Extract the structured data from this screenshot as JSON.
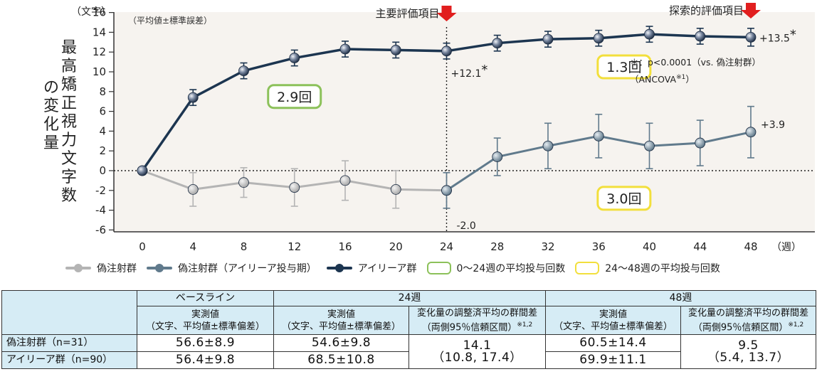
{
  "chart_data": {
    "type": "line",
    "ylabel": "最高矯正視力文字数の変化量",
    "y_unit": "（文字）",
    "x_unit": "（週）",
    "note_top_left": "（平均値±標準誤差）",
    "ylim": [
      -6,
      16
    ],
    "yticks": [
      -6,
      -4,
      -2,
      0,
      2,
      4,
      6,
      8,
      10,
      12,
      14,
      16
    ],
    "x": [
      0,
      4,
      8,
      12,
      16,
      20,
      24,
      28,
      32,
      36,
      40,
      44,
      48
    ],
    "series": [
      {
        "name": "偽注射群",
        "x": [
          0,
          4,
          8,
          12,
          16,
          20,
          24
        ],
        "values": [
          0,
          -1.9,
          -1.2,
          -1.7,
          -1.0,
          -1.9,
          -2.0
        ],
        "err": [
          0,
          1.7,
          1.5,
          1.9,
          2.0,
          1.9,
          1.8
        ],
        "color": "#b4b4b4"
      },
      {
        "name": "偽注射群（アイリーア投与期）",
        "x": [
          24,
          28,
          32,
          36,
          40,
          44,
          48
        ],
        "values": [
          -2.0,
          1.4,
          2.5,
          3.5,
          2.5,
          2.8,
          3.9
        ],
        "err": [
          1.8,
          1.9,
          2.3,
          2.2,
          2.3,
          2.3,
          2.6
        ],
        "color": "#607a8c"
      },
      {
        "name": "アイリーア群",
        "x": [
          0,
          4,
          8,
          12,
          16,
          20,
          24,
          28,
          32,
          36,
          40,
          44,
          48
        ],
        "values": [
          0,
          7.4,
          10.1,
          11.4,
          12.3,
          12.2,
          12.1,
          12.9,
          13.3,
          13.4,
          13.8,
          13.6,
          13.5
        ],
        "err": [
          0,
          0.8,
          0.8,
          0.8,
          0.8,
          0.8,
          0.8,
          0.8,
          0.8,
          0.8,
          0.8,
          0.8,
          0.9
        ],
        "color": "#1c3550"
      }
    ],
    "point_labels": [
      {
        "text": "+12.1",
        "x": 24,
        "y": 12.1,
        "star": "*"
      },
      {
        "text": "-2.0",
        "x": 24,
        "y": -2.0,
        "star": ""
      },
      {
        "text": "+13.5",
        "x": 48,
        "y": 13.5,
        "star": "*"
      },
      {
        "text": "+3.9",
        "x": 48,
        "y": 3.9,
        "star": ""
      }
    ],
    "markers": [
      {
        "label": "主要評価項目",
        "x": 24
      },
      {
        "label": "探索的評価項目",
        "x": 48
      }
    ],
    "dose_boxes": [
      {
        "text": "2.9回",
        "x": 12,
        "y": 7.5,
        "color": "#8cc15a"
      },
      {
        "text": "1.3回",
        "x": 38,
        "y": 10.5,
        "color": "#f2df3c"
      },
      {
        "text": "3.0回",
        "x": 38,
        "y": -2.8,
        "color": "#f2df3c"
      }
    ],
    "significance_note": "＊：p<0.0001（vs. 偽注射群）",
    "method_note": "（ANCOVA",
    "method_note_sup": "※1",
    "method_note_end": "）"
  },
  "legend": [
    {
      "label": "偽注射群",
      "kind": "line",
      "color": "#b4b4b4"
    },
    {
      "label": "偽注射群（アイリーア投与期）",
      "kind": "line",
      "color": "#607a8c"
    },
    {
      "label": "アイリーア群",
      "kind": "line",
      "color": "#1c3550"
    },
    {
      "label": "0～24週の平均投与回数",
      "kind": "box",
      "color": "#8cc15a"
    },
    {
      "label": "24～48週の平均投与回数",
      "kind": "box",
      "color": "#f2df3c"
    }
  ],
  "table": {
    "header_groups": [
      "ベースライン",
      "24週",
      "48週"
    ],
    "sub_measured_1": "実測値",
    "sub_measured_2": "（文字、平均値±標準偏差）",
    "sub_diff_1": "変化量の調整済平均の群間差",
    "sub_diff_2": "（両側95％信頼区間）",
    "sub_diff_sup": "※1,2",
    "rows": [
      {
        "label": "偽注射群（n=31）",
        "baseline": "56.6±8.9",
        "w24": "54.6±9.8",
        "w48": "60.5±14.4"
      },
      {
        "label": "アイリーア群（n=90）",
        "baseline": "56.4±9.8",
        "w24": "68.5±10.8",
        "w48": "69.9±11.1"
      }
    ],
    "diff24_val": "14.1",
    "diff24_ci": "（10.8, 17.4）",
    "diff48_val": "9.5",
    "diff48_ci": "（5.4, 13.7）"
  }
}
